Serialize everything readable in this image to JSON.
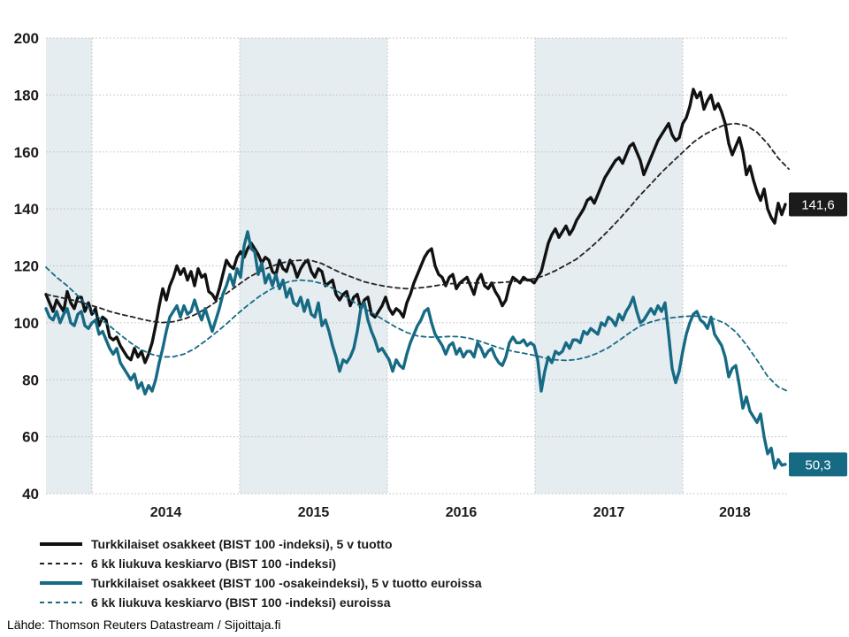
{
  "source": "Lähde: Thomson Reuters Datastream / Sijoittaja.fi",
  "colors": {
    "black_line": "#111111",
    "black_ma_line": "#222222",
    "teal_line": "#176a84",
    "band": "#e5edf1",
    "grid": "#bdbdbd",
    "label_box_black": "#1b1b1b",
    "label_box_teal": "#176a84",
    "label_text": "#ffffff"
  },
  "legend": {
    "items": [
      {
        "label": "Turkkilaiset osakkeet (BIST 100 -indeksi), 5 v tuotto",
        "style": "solid-black"
      },
      {
        "label": "6 kk liukuva keskiarvo (BIST 100 -indeksi)",
        "style": "dash-black"
      },
      {
        "label": "Turkkilaiset osakkeet (BIST 100 -osakeindeksi), 5 v tuotto euroissa",
        "style": "solid-teal"
      },
      {
        "label": "6 kk liukuva keskiarvo (BIST 100 -indeksi) euroissa",
        "style": "dash-teal"
      }
    ]
  },
  "chart_data": {
    "type": "line",
    "title": "",
    "x_axis": {
      "unit": "year",
      "range": [
        2013.689,
        2018.719
      ],
      "year_boundaries": [
        2014,
        2015,
        2016,
        2017,
        2018
      ],
      "ticks": [
        {
          "label": "2014",
          "t": 2014.5
        },
        {
          "label": "2015",
          "t": 2015.5
        },
        {
          "label": "2016",
          "t": 2016.5
        },
        {
          "label": "2017",
          "t": 2017.5
        },
        {
          "label": "2018",
          "t": 2018.353
        }
      ]
    },
    "y_axis": {
      "range": [
        40,
        200
      ],
      "ticks": [
        200,
        180,
        160,
        140,
        120,
        100,
        80,
        60,
        40
      ],
      "grid": "dotted"
    },
    "shaded_bands": [
      [
        2013.689,
        2014
      ],
      [
        2015,
        2016
      ],
      [
        2017,
        2018
      ]
    ],
    "end_labels": [
      {
        "text": "141,6",
        "value": 141.6,
        "box": "black"
      },
      {
        "text": "50,3",
        "value": 50.3,
        "box": "teal"
      }
    ],
    "series": [
      {
        "name": "Turkkilaiset osakkeet (BIST 100 -indeksi), 5 v tuotto",
        "key": "bist100",
        "color": "#111111",
        "dash": false,
        "t0": 2013.6886,
        "dt": 0.0239521,
        "values": [
          110,
          107,
          104,
          108,
          106,
          104,
          111,
          107,
          105,
          109,
          109,
          104,
          107,
          103,
          105,
          99,
          102,
          101,
          95,
          94,
          95,
          92,
          90,
          88,
          87,
          91,
          88,
          90,
          86,
          89,
          93,
          99,
          106,
          112,
          108,
          113,
          116,
          120,
          117,
          119,
          115,
          118,
          113,
          119,
          116,
          117,
          111,
          110,
          108,
          112,
          117,
          122,
          120,
          119,
          123,
          125,
          123,
          126,
          128,
          126,
          124,
          121,
          123,
          122,
          118,
          117,
          122,
          119,
          118,
          122,
          120,
          116,
          119,
          121,
          122,
          118,
          116,
          119,
          118,
          113,
          114,
          115,
          110,
          108,
          110,
          111,
          106,
          109,
          110,
          105,
          108,
          109,
          103,
          102,
          104,
          106,
          109,
          105,
          103,
          105,
          104,
          102,
          107,
          110,
          114,
          117,
          120,
          123,
          125,
          126,
          120,
          117,
          116,
          113,
          116,
          117,
          112,
          114,
          115,
          116,
          113,
          110,
          115,
          117,
          113,
          112,
          114,
          111,
          109,
          106,
          108,
          113,
          116,
          115,
          114,
          116,
          115,
          115,
          114,
          116,
          118,
          123,
          128,
          131,
          133,
          130,
          132,
          134,
          131,
          133,
          136,
          138,
          140,
          143,
          144,
          142,
          145,
          148,
          151,
          153,
          155,
          157,
          158,
          156,
          159,
          162,
          163,
          160,
          157,
          152,
          155,
          158,
          161,
          164,
          166,
          168,
          170,
          166,
          164,
          165,
          170,
          172,
          176,
          182,
          179,
          181,
          175,
          178,
          180,
          175,
          177,
          174,
          170,
          163,
          159,
          162,
          165,
          160,
          152,
          155,
          150,
          146,
          143,
          147,
          140,
          137,
          135,
          142,
          138,
          141.6
        ]
      },
      {
        "name": "6 kk liukuva keskiarvo (BIST 100 -indeksi)",
        "key": "bist100-ma",
        "color": "#222222",
        "dash": true,
        "t0": 2013.6886,
        "dt": 0.0718563,
        "values": [
          110,
          109.2,
          108.4,
          107.5,
          106.4,
          105.3,
          104,
          103,
          102.2,
          101.3,
          100.5,
          100.1,
          100.4,
          101.3,
          102.8,
          104.8,
          107.3,
          110.3,
          113,
          115.7,
          117.8,
          119.4,
          120.8,
          121.7,
          122,
          121.9,
          120.8,
          118.9,
          117.2,
          115.8,
          114.4,
          113.5,
          112.8,
          112.3,
          112,
          112.2,
          112.6,
          113.2,
          113.7,
          113.9,
          114,
          114,
          114,
          114.2,
          114.5,
          114.9,
          115.5,
          116.6,
          118.3,
          120.3,
          122.4,
          125.4,
          128.7,
          132.4,
          136.3,
          140.5,
          144.9,
          148.8,
          152.8,
          156.4,
          159.9,
          163.4,
          166,
          168,
          169.6,
          170,
          169.2,
          166.9,
          162.9,
          157.8,
          154
        ]
      },
      {
        "name": "Turkkilaiset osakkeet (BIST 100 -osakeindeksi), 5 v tuotto euroissa",
        "key": "bist100-eur",
        "color": "#176a84",
        "dash": false,
        "t0": 2013.6886,
        "dt": 0.0239521,
        "values": [
          105,
          102,
          101,
          104,
          100,
          103,
          105,
          100,
          99,
          103,
          104,
          99,
          98,
          100,
          101,
          96,
          97,
          94,
          91,
          89,
          91,
          86,
          84,
          82,
          80,
          82,
          77,
          79,
          75,
          78,
          76,
          80,
          86,
          91,
          97,
          102,
          104,
          106,
          102,
          106,
          103,
          104,
          108,
          104,
          101,
          105,
          101,
          97,
          101,
          105,
          110,
          113,
          117,
          113,
          119,
          116,
          127,
          132,
          126,
          125,
          117,
          121,
          114,
          117,
          113,
          117,
          112,
          115,
          109,
          112,
          107,
          106,
          109,
          104,
          108,
          103,
          102,
          107,
          99,
          101,
          97,
          92,
          88,
          83,
          87,
          86,
          88,
          91,
          97,
          105,
          107,
          101,
          97,
          94,
          90,
          91,
          89,
          87,
          83,
          87,
          85,
          84,
          89,
          93,
          96,
          99,
          101,
          104,
          105,
          100,
          96,
          94,
          92,
          89,
          92,
          93,
          89,
          91,
          88,
          90,
          90,
          88,
          93,
          91,
          88,
          90,
          91,
          88,
          86,
          85,
          88,
          93,
          95,
          93,
          93,
          94,
          92,
          93,
          92,
          87,
          76,
          83,
          88,
          86,
          90,
          89,
          90,
          93,
          91,
          94,
          94,
          93,
          97,
          96,
          98,
          97,
          96,
          100,
          99,
          102,
          101,
          99,
          103,
          101,
          104,
          106,
          109,
          104,
          100,
          101,
          103,
          105,
          103,
          106,
          104,
          107,
          96,
          84,
          79,
          83,
          90,
          96,
          100,
          103,
          104,
          101,
          100,
          98,
          102,
          96,
          94,
          92,
          88,
          81,
          84,
          85,
          78,
          70,
          74,
          69,
          67,
          65,
          68,
          60,
          54,
          56,
          49,
          52,
          50,
          50.3
        ]
      },
      {
        "name": "6 kk liukuva keskiarvo (BIST 100 -indeksi) euroissa",
        "key": "bist100-eur-ma",
        "color": "#176a84",
        "dash": true,
        "t0": 2013.6886,
        "dt": 0.0718563,
        "values": [
          119.5,
          116,
          113,
          109.5,
          105.5,
          101.8,
          98.9,
          95.8,
          92.9,
          90.5,
          88.9,
          88,
          88.1,
          89,
          90.9,
          93.6,
          96.5,
          99.6,
          103,
          106.1,
          109,
          111.4,
          113.3,
          114.6,
          115,
          114.7,
          113.8,
          112.2,
          109.8,
          107.3,
          105,
          102.9,
          100.6,
          98.4,
          96.6,
          95.4,
          95,
          95,
          95.2,
          95.1,
          94.5,
          93.4,
          92.1,
          90.9,
          90,
          89.3,
          88.6,
          87.7,
          87,
          86.8,
          87.1,
          88,
          89.4,
          91.3,
          93.8,
          96.5,
          98.9,
          100.3,
          101.3,
          101.8,
          102.2,
          102.4,
          102.2,
          101.3,
          99.8,
          96.8,
          92.3,
          86.9,
          81.2,
          77.5,
          75.8
        ]
      }
    ]
  }
}
